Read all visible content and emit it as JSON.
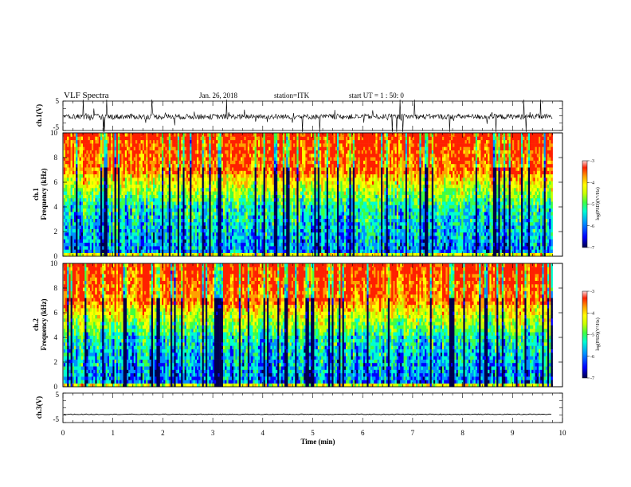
{
  "header": {
    "title": "VLF Spectra",
    "date": "Jan. 26, 2018",
    "station": "station=ITK",
    "start": "start UT =  1 : 50: 0"
  },
  "chart_data": [
    {
      "id": "ch1-waveform",
      "type": "line",
      "ylabel": "ch.1(V)",
      "ylim": [
        -5,
        5
      ],
      "yticks": [
        "5",
        "-5"
      ],
      "xlim": [
        0,
        10
      ],
      "description_level": -0.3
    },
    {
      "id": "ch1-spectrogram",
      "type": "heatmap",
      "ylabel": "ch.1\nFrequency (kHz)",
      "ylim": [
        0,
        10
      ],
      "yticks": [
        "0",
        "2",
        "4",
        "6",
        "8",
        "10"
      ],
      "xlim": [
        0,
        10
      ],
      "colorbar": {
        "label": "log(PSD)(V²/Hz)",
        "range": [
          -7,
          -3
        ],
        "ticks": [
          "-3",
          "-4",
          "-5",
          "-6",
          "-7"
        ]
      }
    },
    {
      "id": "ch2-spectrogram",
      "type": "heatmap",
      "ylabel": "ch.2\nFrequency (kHz)",
      "ylim": [
        0,
        10
      ],
      "yticks": [
        "0",
        "2",
        "4",
        "6",
        "8",
        "10"
      ],
      "xlim": [
        0,
        10
      ],
      "colorbar": {
        "label": "log(PSD)(V²/Hz)",
        "range": [
          -7,
          -3
        ],
        "ticks": [
          "-3",
          "-4",
          "-5",
          "-6",
          "-7"
        ]
      }
    },
    {
      "id": "ch3-waveform",
      "type": "line",
      "ylabel": "ch.3(V)",
      "ylim": [
        -5,
        5
      ],
      "yticks": [
        "5",
        "-5"
      ],
      "xlim": [
        0,
        10
      ],
      "level": -2.2
    }
  ],
  "xaxis": {
    "label": "Time (min)",
    "ticks": [
      "0",
      "1",
      "2",
      "3",
      "4",
      "5",
      "6",
      "7",
      "8",
      "9",
      "10"
    ],
    "data_end": 9.8
  },
  "colors": {
    "waveform": "#000000",
    "colormap": [
      "#000060",
      "#0000ff",
      "#00a0ff",
      "#00ffc0",
      "#40ff40",
      "#c0ff00",
      "#ffff00",
      "#ffa000",
      "#ff3000",
      "#ffffff"
    ]
  }
}
